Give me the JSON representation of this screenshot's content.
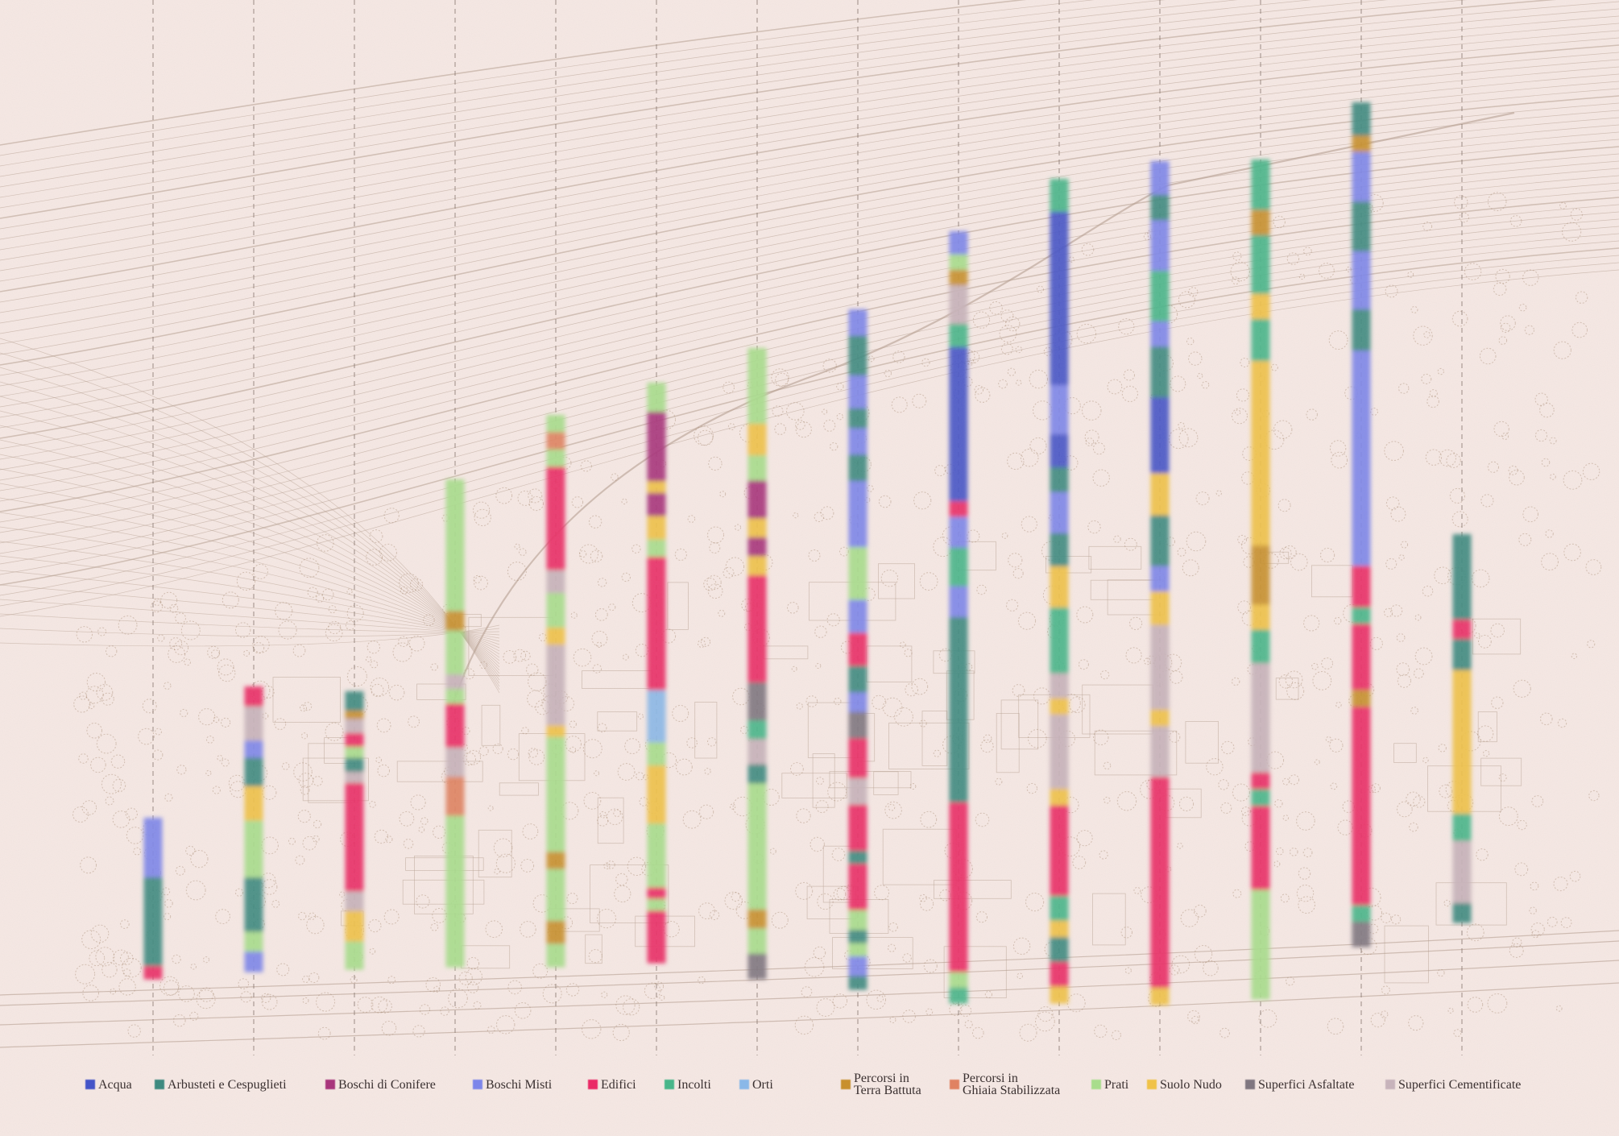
{
  "colors": {
    "background": "#f6e9e5",
    "basemap_line": "#b59f8f",
    "basemap_tree": "#a98c73",
    "divider": "#7a6a62"
  },
  "legend": [
    {
      "key": "acqua",
      "label": "Acqua",
      "color": "#4454c8"
    },
    {
      "key": "arbusteti",
      "label": "Arbusteti e Cespuglieti",
      "color": "#3e8a80"
    },
    {
      "key": "conifere",
      "label": "Boschi di Conifere",
      "color": "#a8357c"
    },
    {
      "key": "misti",
      "label": "Boschi Misti",
      "color": "#7d86ea"
    },
    {
      "key": "edifici",
      "label": "Edifici",
      "color": "#ea2a66"
    },
    {
      "key": "incolti",
      "label": "Incolti",
      "color": "#47b68a"
    },
    {
      "key": "orti",
      "label": "Orti",
      "color": "#8ab8e8"
    },
    {
      "key": "terra",
      "label": "Percorsi in\nTerra Battuta",
      "color": "#c8902e"
    },
    {
      "key": "ghiaia",
      "label": "Percorsi in\nGhiaia Stabilizzata",
      "color": "#e08262"
    },
    {
      "key": "prati",
      "label": "Prati",
      "color": "#a8dd8c"
    },
    {
      "key": "suolo",
      "label": "Suolo Nudo",
      "color": "#f0c248"
    },
    {
      "key": "asfaltate",
      "label": "Superfici Asfaltate",
      "color": "#7f7680"
    },
    {
      "key": "cementificate",
      "label": "Superfici Cementificate",
      "color": "#c7b3bb"
    }
  ],
  "transects": [
    {
      "id": 1,
      "segments": [
        {
          "c": "misti",
          "f": 0.37
        },
        {
          "c": "arbusteti",
          "f": 0.55
        },
        {
          "c": "edifici",
          "f": 0.08
        }
      ]
    },
    {
      "id": 2,
      "segments": [
        {
          "c": "edifici",
          "f": 0.07
        },
        {
          "c": "cementificate",
          "f": 0.12
        },
        {
          "c": "misti",
          "f": 0.06
        },
        {
          "c": "arbusteti",
          "f": 0.1
        },
        {
          "c": "suolo",
          "f": 0.12
        },
        {
          "c": "prati",
          "f": 0.2
        },
        {
          "c": "arbusteti",
          "f": 0.19
        },
        {
          "c": "prati",
          "f": 0.07
        },
        {
          "c": "misti",
          "f": 0.07
        }
      ]
    },
    {
      "id": 3,
      "segments": [
        {
          "c": "arbusteti",
          "f": 0.07
        },
        {
          "c": "terra",
          "f": 0.03
        },
        {
          "c": "cementificate",
          "f": 0.05
        },
        {
          "c": "edifici",
          "f": 0.05
        },
        {
          "c": "prati",
          "f": 0.04
        },
        {
          "c": "arbusteti",
          "f": 0.05
        },
        {
          "c": "cementificate",
          "f": 0.04
        },
        {
          "c": "edifici",
          "f": 0.39
        },
        {
          "c": "cementificate",
          "f": 0.07
        },
        {
          "c": "suolo",
          "f": 0.11
        },
        {
          "c": "prati",
          "f": 0.1
        }
      ]
    },
    {
      "id": 4,
      "segments": [
        {
          "c": "prati",
          "f": 0.27
        },
        {
          "c": "terra",
          "f": 0.04
        },
        {
          "c": "prati",
          "f": 0.09
        },
        {
          "c": "cementificate",
          "f": 0.03
        },
        {
          "c": "prati",
          "f": 0.03
        },
        {
          "c": "edifici",
          "f": 0.09
        },
        {
          "c": "cementificate",
          "f": 0.06
        },
        {
          "c": "ghiaia",
          "f": 0.08
        },
        {
          "c": "prati",
          "f": 0.31
        }
      ]
    },
    {
      "id": 5,
      "segments": [
        {
          "c": "prati",
          "f": 0.03
        },
        {
          "c": "ghiaia",
          "f": 0.03
        },
        {
          "c": "prati",
          "f": 0.03
        },
        {
          "c": "edifici",
          "f": 0.18
        },
        {
          "c": "cementificate",
          "f": 0.04
        },
        {
          "c": "prati",
          "f": 0.06
        },
        {
          "c": "suolo",
          "f": 0.03
        },
        {
          "c": "cementificate",
          "f": 0.14
        },
        {
          "c": "suolo",
          "f": 0.02
        },
        {
          "c": "prati",
          "f": 0.2
        },
        {
          "c": "terra",
          "f": 0.03
        },
        {
          "c": "prati",
          "f": 0.09
        },
        {
          "c": "terra",
          "f": 0.04
        },
        {
          "c": "prati",
          "f": 0.04
        }
      ]
    },
    {
      "id": 6,
      "segments": [
        {
          "c": "prati",
          "f": 0.05
        },
        {
          "c": "conifere",
          "f": 0.12
        },
        {
          "c": "suolo",
          "f": 0.02
        },
        {
          "c": "conifere",
          "f": 0.04
        },
        {
          "c": "suolo",
          "f": 0.04
        },
        {
          "c": "prati",
          "f": 0.03
        },
        {
          "c": "edifici",
          "f": 0.23
        },
        {
          "c": "orti",
          "f": 0.09
        },
        {
          "c": "prati",
          "f": 0.04
        },
        {
          "c": "suolo",
          "f": 0.1
        },
        {
          "c": "prati",
          "f": 0.11
        },
        {
          "c": "edifici",
          "f": 0.02
        },
        {
          "c": "prati",
          "f": 0.02
        },
        {
          "c": "edifici",
          "f": 0.09
        }
      ]
    },
    {
      "id": 7,
      "segments": [
        {
          "c": "prati",
          "f": 0.12
        },
        {
          "c": "suolo",
          "f": 0.05
        },
        {
          "c": "prati",
          "f": 0.04
        },
        {
          "c": "conifere",
          "f": 0.06
        },
        {
          "c": "suolo",
          "f": 0.03
        },
        {
          "c": "conifere",
          "f": 0.03
        },
        {
          "c": "suolo",
          "f": 0.03
        },
        {
          "c": "edifici",
          "f": 0.17
        },
        {
          "c": "asfaltate",
          "f": 0.06
        },
        {
          "c": "incolti",
          "f": 0.03
        },
        {
          "c": "cementificate",
          "f": 0.04
        },
        {
          "c": "arbusteti",
          "f": 0.03
        },
        {
          "c": "prati",
          "f": 0.2
        },
        {
          "c": "terra",
          "f": 0.03
        },
        {
          "c": "prati",
          "f": 0.04
        },
        {
          "c": "asfaltate",
          "f": 0.04
        }
      ]
    },
    {
      "id": 8,
      "segments": [
        {
          "c": "misti",
          "f": 0.04
        },
        {
          "c": "arbusteti",
          "f": 0.06
        },
        {
          "c": "misti",
          "f": 0.05
        },
        {
          "c": "arbusteti",
          "f": 0.03
        },
        {
          "c": "misti",
          "f": 0.04
        },
        {
          "c": "arbusteti",
          "f": 0.04
        },
        {
          "c": "misti",
          "f": 0.1
        },
        {
          "c": "prati",
          "f": 0.08
        },
        {
          "c": "misti",
          "f": 0.05
        },
        {
          "c": "edifici",
          "f": 0.05
        },
        {
          "c": "arbusteti",
          "f": 0.04
        },
        {
          "c": "misti",
          "f": 0.03
        },
        {
          "c": "asfaltate",
          "f": 0.04
        },
        {
          "c": "edifici",
          "f": 0.06
        },
        {
          "c": "cementificate",
          "f": 0.04
        },
        {
          "c": "edifici",
          "f": 0.07
        },
        {
          "c": "arbusteti",
          "f": 0.02
        },
        {
          "c": "edifici",
          "f": 0.07
        },
        {
          "c": "prati",
          "f": 0.03
        },
        {
          "c": "arbusteti",
          "f": 0.02
        },
        {
          "c": "prati",
          "f": 0.02
        },
        {
          "c": "misti",
          "f": 0.03
        },
        {
          "c": "arbusteti",
          "f": 0.02
        }
      ]
    },
    {
      "id": 9,
      "segments": [
        {
          "c": "misti",
          "f": 0.03
        },
        {
          "c": "prati",
          "f": 0.02
        },
        {
          "c": "terra",
          "f": 0.02
        },
        {
          "c": "cementificate",
          "f": 0.05
        },
        {
          "c": "incolti",
          "f": 0.03
        },
        {
          "c": "acqua",
          "f": 0.2
        },
        {
          "c": "edifici",
          "f": 0.02
        },
        {
          "c": "misti",
          "f": 0.04
        },
        {
          "c": "incolti",
          "f": 0.05
        },
        {
          "c": "misti",
          "f": 0.04
        },
        {
          "c": "arbusteti",
          "f": 0.24
        },
        {
          "c": "edifici",
          "f": 0.22
        },
        {
          "c": "prati",
          "f": 0.02
        },
        {
          "c": "incolti",
          "f": 0.02
        }
      ]
    },
    {
      "id": 10,
      "segments": [
        {
          "c": "incolti",
          "f": 0.04
        },
        {
          "c": "acqua",
          "f": 0.21
        },
        {
          "c": "misti",
          "f": 0.06
        },
        {
          "c": "acqua",
          "f": 0.04
        },
        {
          "c": "arbusteti",
          "f": 0.03
        },
        {
          "c": "misti",
          "f": 0.05
        },
        {
          "c": "arbusteti",
          "f": 0.04
        },
        {
          "c": "suolo",
          "f": 0.05
        },
        {
          "c": "incolti",
          "f": 0.08
        },
        {
          "c": "cementificate",
          "f": 0.03
        },
        {
          "c": "suolo",
          "f": 0.02
        },
        {
          "c": "cementificate",
          "f": 0.09
        },
        {
          "c": "suolo",
          "f": 0.02
        },
        {
          "c": "edifici",
          "f": 0.11
        },
        {
          "c": "incolti",
          "f": 0.03
        },
        {
          "c": "suolo",
          "f": 0.02
        },
        {
          "c": "arbusteti",
          "f": 0.03
        },
        {
          "c": "edifici",
          "f": 0.03
        },
        {
          "c": "suolo",
          "f": 0.02
        }
      ]
    },
    {
      "id": 11,
      "segments": [
        {
          "c": "misti",
          "f": 0.04
        },
        {
          "c": "arbusteti",
          "f": 0.03
        },
        {
          "c": "misti",
          "f": 0.06
        },
        {
          "c": "incolti",
          "f": 0.06
        },
        {
          "c": "misti",
          "f": 0.03
        },
        {
          "c": "arbusteti",
          "f": 0.06
        },
        {
          "c": "acqua",
          "f": 0.09
        },
        {
          "c": "suolo",
          "f": 0.05
        },
        {
          "c": "arbusteti",
          "f": 0.06
        },
        {
          "c": "misti",
          "f": 0.03
        },
        {
          "c": "suolo",
          "f": 0.04
        },
        {
          "c": "cementificate",
          "f": 0.1
        },
        {
          "c": "suolo",
          "f": 0.02
        },
        {
          "c": "cementificate",
          "f": 0.06
        },
        {
          "c": "edifici",
          "f": 0.25
        },
        {
          "c": "suolo",
          "f": 0.02
        }
      ]
    },
    {
      "id": 12,
      "segments": [
        {
          "c": "incolti",
          "f": 0.06
        },
        {
          "c": "terra",
          "f": 0.03
        },
        {
          "c": "incolti",
          "f": 0.07
        },
        {
          "c": "suolo",
          "f": 0.03
        },
        {
          "c": "incolti",
          "f": 0.05
        },
        {
          "c": "suolo",
          "f": 0.22
        },
        {
          "c": "terra",
          "f": 0.07
        },
        {
          "c": "suolo",
          "f": 0.03
        },
        {
          "c": "incolti",
          "f": 0.04
        },
        {
          "c": "cementificate",
          "f": 0.13
        },
        {
          "c": "edifici",
          "f": 0.02
        },
        {
          "c": "incolti",
          "f": 0.02
        },
        {
          "c": "edifici",
          "f": 0.1
        },
        {
          "c": "prati",
          "f": 0.13
        }
      ]
    },
    {
      "id": 13,
      "segments": [
        {
          "c": "arbusteti",
          "f": 0.04
        },
        {
          "c": "terra",
          "f": 0.02
        },
        {
          "c": "misti",
          "f": 0.06
        },
        {
          "c": "arbusteti",
          "f": 0.06
        },
        {
          "c": "misti",
          "f": 0.07
        },
        {
          "c": "arbusteti",
          "f": 0.05
        },
        {
          "c": "misti",
          "f": 0.26
        },
        {
          "c": "edifici",
          "f": 0.05
        },
        {
          "c": "incolti",
          "f": 0.02
        },
        {
          "c": "edifici",
          "f": 0.08
        },
        {
          "c": "terra",
          "f": 0.02
        },
        {
          "c": "edifici",
          "f": 0.24
        },
        {
          "c": "incolti",
          "f": 0.02
        },
        {
          "c": "asfaltate",
          "f": 0.03
        }
      ]
    },
    {
      "id": 14,
      "segments": [
        {
          "c": "arbusteti",
          "f": 0.22
        },
        {
          "c": "edifici",
          "f": 0.05
        },
        {
          "c": "arbusteti",
          "f": 0.08
        },
        {
          "c": "suolo",
          "f": 0.37
        },
        {
          "c": "incolti",
          "f": 0.07
        },
        {
          "c": "cementificate",
          "f": 0.16
        },
        {
          "c": "arbusteti",
          "f": 0.05
        }
      ]
    }
  ]
}
